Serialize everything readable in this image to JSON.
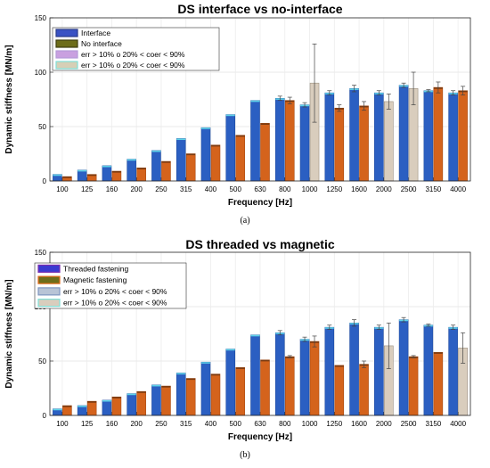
{
  "chart_data": [
    {
      "type": "bar",
      "title": "DS interface vs no-interface",
      "xlabel": "Frequency [Hz]",
      "ylabel": "Dynamic stiffness [MN/m]",
      "panel_label": "(a)",
      "ylim": [
        0,
        150
      ],
      "yticks": [
        0,
        50,
        100,
        150
      ],
      "grid": true,
      "legend_position": "top-left",
      "categories": [
        "100",
        "125",
        "160",
        "200",
        "250",
        "315",
        "400",
        "500",
        "630",
        "800",
        "1000",
        "1250",
        "1600",
        "2000",
        "2500",
        "3150",
        "4000"
      ],
      "series": [
        {
          "name": "Interface",
          "color": "#2b5fc2",
          "values": [
            6,
            10,
            14,
            20,
            28,
            39,
            49,
            61,
            74,
            76,
            70,
            81,
            85,
            81,
            88,
            83,
            81
          ],
          "errors": [
            0,
            0,
            0,
            0,
            0,
            0,
            0,
            0,
            0,
            2,
            2,
            2,
            3,
            2,
            2,
            1,
            2
          ],
          "flags": [
            "",
            "",
            "",
            "",
            "",
            "",
            "",
            "",
            "",
            "",
            "",
            "",
            "",
            "",
            "",
            "",
            ""
          ]
        },
        {
          "name": "No interface",
          "color": "#d4631c",
          "values": [
            4,
            6,
            9,
            12,
            18,
            25,
            33,
            42,
            53,
            74,
            90,
            67,
            69,
            73,
            85,
            86,
            83
          ],
          "errors": [
            0,
            0,
            0,
            0,
            0,
            0,
            0,
            0,
            0,
            3,
            36,
            3,
            4,
            7,
            15,
            5,
            4
          ],
          "flags": [
            "",
            "",
            "",
            "",
            "",
            "",
            "",
            "",
            "",
            "",
            "B",
            "",
            "",
            "B",
            "B",
            "",
            ""
          ]
        }
      ],
      "legend": [
        {
          "label": "Interface",
          "color": "#3a52c4",
          "border": "#2b3b8a"
        },
        {
          "label": "No interface",
          "color": "#6d6d1a",
          "border": "#3f3f10"
        },
        {
          "label": "err > 10% o 20% < coer < 90%",
          "color": "#c9a0e0",
          "border": "#b49ad8"
        },
        {
          "label": "err > 10% o 20% < coer < 90%",
          "color": "#d6cfb6",
          "border": "#7fe0d8"
        }
      ],
      "flag_colors": {
        "A": "#b8c4d6",
        "B": "#d9cdbd"
      }
    },
    {
      "type": "bar",
      "title": "DS threaded vs magnetic",
      "xlabel": "Frequency [Hz]",
      "ylabel": "Dynamic stiffness [MN/m]",
      "panel_label": "(b)",
      "ylim": [
        0,
        150
      ],
      "yticks": [
        0,
        50,
        100,
        150
      ],
      "grid": true,
      "legend_position": "top-left",
      "categories": [
        "100",
        "125",
        "160",
        "200",
        "250",
        "315",
        "400",
        "500",
        "630",
        "800",
        "1000",
        "1250",
        "1600",
        "2000",
        "2500",
        "3150",
        "4000"
      ],
      "series": [
        {
          "name": "Threaded fastening",
          "color": "#2b5fc2",
          "values": [
            6,
            9,
            14,
            20,
            28,
            39,
            49,
            61,
            74,
            76,
            70,
            81,
            85,
            81,
            88,
            83,
            81
          ],
          "errors": [
            0,
            0,
            0,
            0,
            0,
            0,
            0,
            0,
            0,
            2,
            2,
            2,
            3,
            2,
            2,
            1,
            2
          ],
          "flags": [
            "",
            "",
            "",
            "",
            "",
            "",
            "",
            "",
            "",
            "",
            "",
            "",
            "",
            "",
            "",
            "",
            ""
          ]
        },
        {
          "name": "Magnetic fastening",
          "color": "#d4631c",
          "values": [
            9,
            13,
            17,
            22,
            27,
            34,
            38,
            44,
            51,
            54,
            68,
            46,
            47,
            64,
            54,
            58,
            62
          ],
          "errors": [
            0,
            0,
            0,
            0,
            0,
            0,
            0,
            0,
            0,
            1,
            5,
            0,
            3,
            21,
            1,
            0,
            14
          ],
          "flags": [
            "",
            "",
            "",
            "",
            "",
            "",
            "",
            "",
            "",
            "",
            "",
            "",
            "",
            "B",
            "",
            "",
            "B"
          ]
        }
      ],
      "legend": [
        {
          "label": "Threaded fastening",
          "color": "#3a3ad0",
          "border": "#7a2fb0"
        },
        {
          "label": "Magnetic fastening",
          "color": "#6d6d1a",
          "border": "#e36a1a"
        },
        {
          "label": "err > 10% o 20% < coer < 90%",
          "color": "#b8c4d6",
          "border": "#7f97c0"
        },
        {
          "label": "err > 10% o 20% < coer < 90%",
          "color": "#d9cdbd",
          "border": "#7fe0d8"
        }
      ],
      "flag_colors": {
        "A": "#b8c4d6",
        "B": "#d9cdbd"
      }
    }
  ]
}
